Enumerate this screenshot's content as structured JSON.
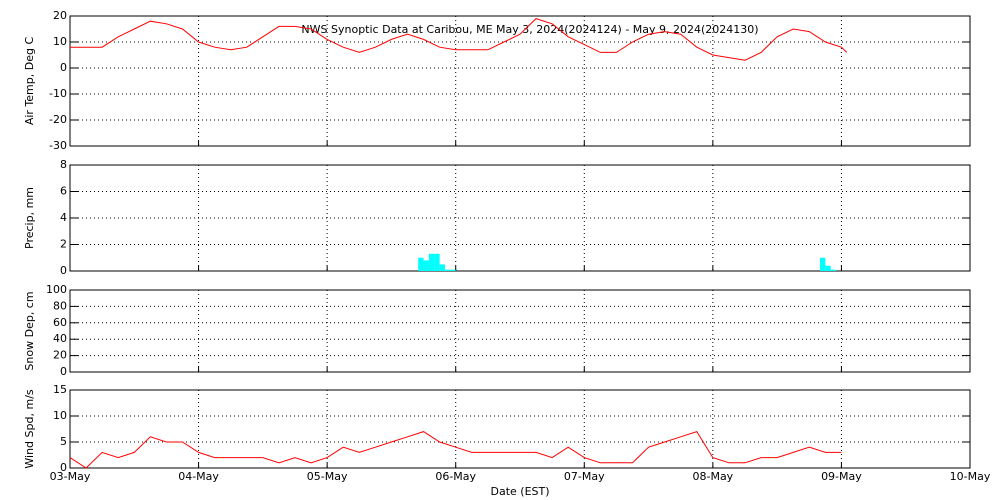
{
  "chart_data": [
    {
      "type": "line",
      "title": "NWS Synoptic Data at Caribou, ME   May  3, 2024(2024124) - May  9, 2024(2024130)",
      "ylabel": "Air Temp, Deg C",
      "color": "#ff0000",
      "x": [
        0,
        3,
        6,
        9,
        12,
        15,
        18,
        21,
        24,
        27,
        30,
        33,
        36,
        39,
        42,
        45,
        48,
        51,
        54,
        57,
        60,
        63,
        66,
        69,
        72,
        75,
        78,
        81,
        84,
        87,
        90,
        93,
        96,
        99,
        102,
        105,
        108,
        111,
        114,
        117,
        120,
        123,
        126,
        129,
        132,
        135,
        138,
        141,
        144,
        145
      ],
      "values": [
        8,
        8,
        8,
        12,
        15,
        18,
        17,
        15,
        10,
        8,
        7,
        8,
        12,
        16,
        16,
        15,
        11,
        8,
        6,
        8,
        11,
        13,
        11,
        8,
        7,
        7,
        7,
        10,
        13,
        19,
        17,
        12,
        9,
        6,
        6,
        10,
        13,
        14,
        13,
        8,
        5,
        4,
        3,
        6,
        12,
        15,
        14,
        10,
        8,
        6
      ],
      "xlim": [
        0,
        168
      ],
      "xticks": [
        0,
        24,
        48,
        72,
        96,
        120,
        144,
        168
      ],
      "ylim": [
        -30,
        20
      ],
      "yticks": [
        -30,
        -20,
        -10,
        0,
        10,
        20
      ],
      "grid": true
    },
    {
      "type": "bar",
      "ylabel": "Precip, mm",
      "color": "#00ffff",
      "x": [
        65,
        66,
        67,
        68,
        69,
        70,
        71,
        140,
        141,
        142
      ],
      "values": [
        1.0,
        0.8,
        1.3,
        1.3,
        0.5,
        0.1,
        0.1,
        1.0,
        0.4,
        0.1
      ],
      "xlim": [
        0,
        168
      ],
      "xticks": [
        0,
        24,
        48,
        72,
        96,
        120,
        144,
        168
      ],
      "ylim": [
        0,
        8
      ],
      "yticks": [
        0,
        2,
        4,
        6,
        8
      ],
      "grid": true
    },
    {
      "type": "line",
      "ylabel": "Snow Dep, cm",
      "color": "#ff0000",
      "x": [],
      "values": [],
      "xlim": [
        0,
        168
      ],
      "xticks": [
        0,
        24,
        48,
        72,
        96,
        120,
        144,
        168
      ],
      "ylim": [
        0,
        100
      ],
      "yticks": [
        0,
        20,
        40,
        60,
        80,
        100
      ],
      "grid": true
    },
    {
      "type": "line",
      "ylabel": "Wind Spd, m/s",
      "xlabel": "Date (EST)",
      "color": "#ff0000",
      "x": [
        0,
        3,
        6,
        9,
        12,
        15,
        18,
        21,
        24,
        27,
        30,
        33,
        36,
        39,
        42,
        45,
        48,
        51,
        54,
        57,
        60,
        63,
        66,
        69,
        72,
        75,
        78,
        81,
        84,
        87,
        90,
        93,
        96,
        99,
        102,
        105,
        108,
        111,
        114,
        117,
        120,
        123,
        126,
        129,
        132,
        135,
        138,
        141,
        144
      ],
      "values": [
        2,
        0,
        3,
        2,
        3,
        6,
        5,
        5,
        3,
        2,
        2,
        2,
        2,
        1,
        2,
        1,
        2,
        4,
        3,
        4,
        5,
        6,
        7,
        5,
        4,
        3,
        3,
        3,
        3,
        3,
        2,
        4,
        2,
        1,
        1,
        1,
        4,
        5,
        6,
        7,
        2,
        1,
        1,
        2,
        2,
        3,
        4,
        3,
        3
      ],
      "xlim": [
        0,
        168
      ],
      "xticks": [
        {
          "value": 0,
          "label": "03-May"
        },
        {
          "value": 24,
          "label": "04-May"
        },
        {
          "value": 48,
          "label": "05-May"
        },
        {
          "value": 72,
          "label": "06-May"
        },
        {
          "value": 96,
          "label": "07-May"
        },
        {
          "value": 120,
          "label": "08-May"
        },
        {
          "value": 144,
          "label": "09-May"
        },
        {
          "value": 168,
          "label": "10-May"
        }
      ],
      "ylim": [
        0,
        15
      ],
      "yticks": [
        0,
        5,
        10,
        15
      ],
      "grid": true
    }
  ]
}
